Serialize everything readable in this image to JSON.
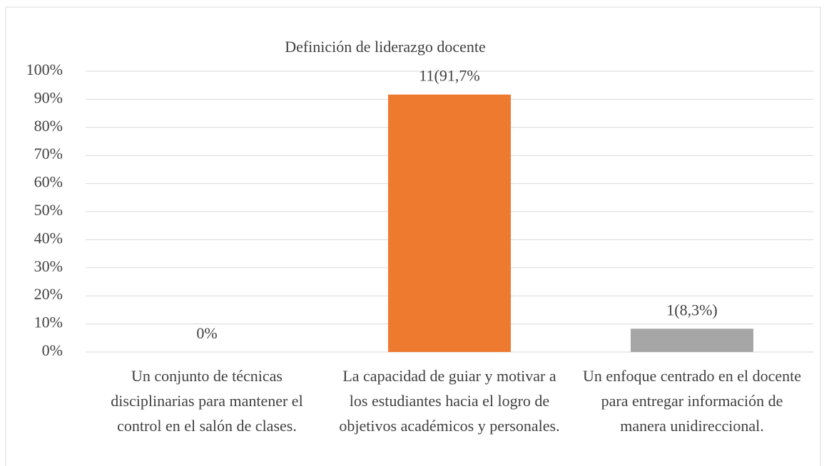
{
  "chart_data": {
    "type": "bar",
    "title": "Definición de liderazgo docente",
    "categories": [
      "Un conjunto de técnicas disciplinarias para mantener el control en el salón de clases.",
      "La capacidad de guiar y motivar a los estudiantes hacia el logro de objetivos académicos y personales.",
      "Un enfoque centrado en el docente para entregar información de manera unidireccional."
    ],
    "values": [
      0,
      91.7,
      8.3
    ],
    "value_labels": [
      "0%",
      "11(91,7%",
      "1(8,3%)"
    ],
    "colors": [
      "#4472c4",
      "#ee7a30",
      "#a6a6a6"
    ],
    "ylim": [
      0,
      100
    ],
    "yticks": [
      {
        "value": 0,
        "label": "0%"
      },
      {
        "value": 10,
        "label": "10%"
      },
      {
        "value": 20,
        "label": "20%"
      },
      {
        "value": 30,
        "label": "30%"
      },
      {
        "value": 40,
        "label": "40%"
      },
      {
        "value": 50,
        "label": "50%"
      },
      {
        "value": 60,
        "label": "60%"
      },
      {
        "value": 70,
        "label": "70%"
      },
      {
        "value": 80,
        "label": "80%"
      },
      {
        "value": 90,
        "label": "90%"
      },
      {
        "value": 100,
        "label": "100%"
      }
    ],
    "grid": true
  }
}
